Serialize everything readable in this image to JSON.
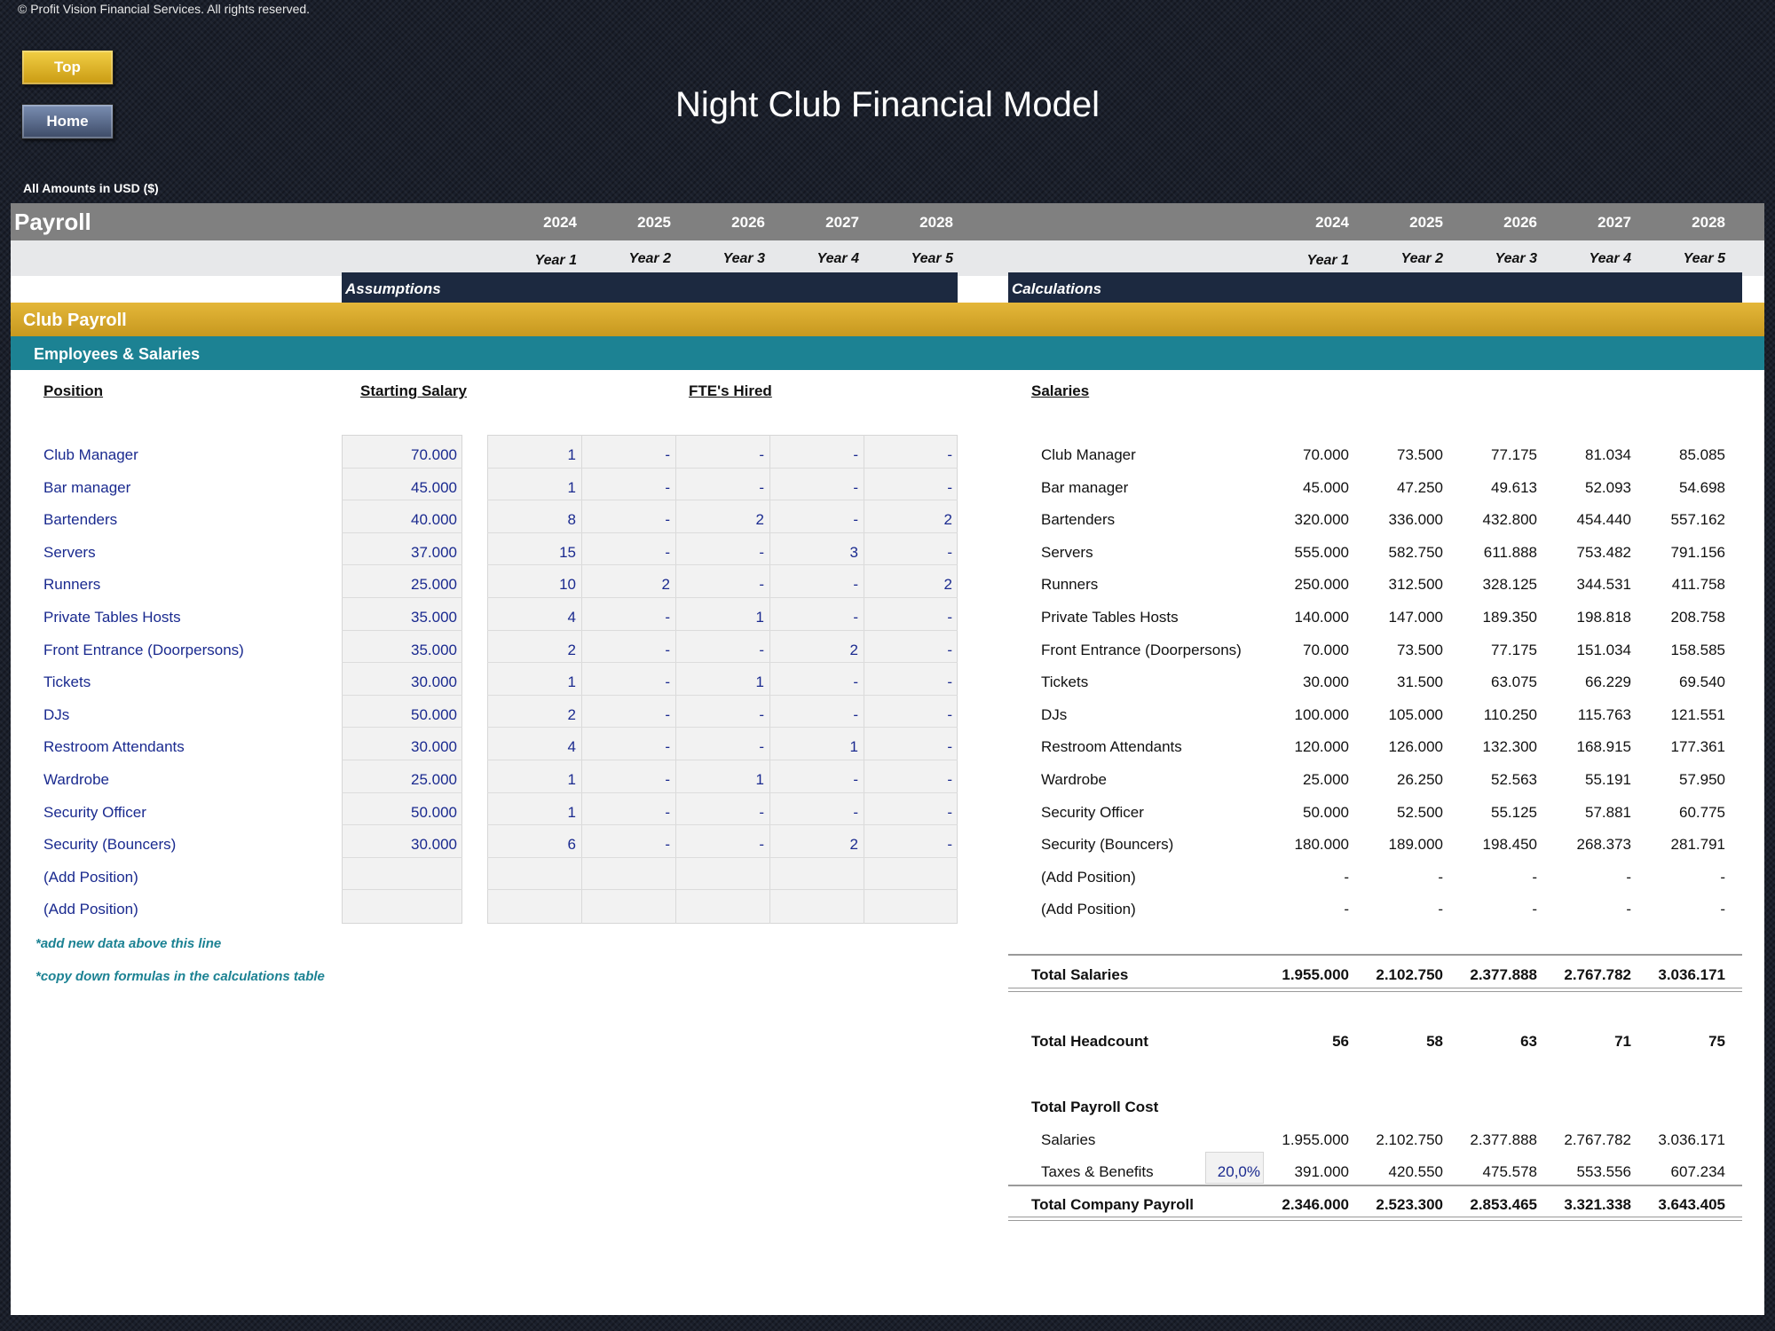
{
  "copyright": "© Profit Vision Financial Services. All rights reserved.",
  "nav": {
    "top_label": "Top",
    "home_label": "Home"
  },
  "title": "Night Club Financial Model",
  "amounts_label": "All Amounts in  USD ($)",
  "header": {
    "sheet_name": "Payroll",
    "years": [
      "2024",
      "2025",
      "2026",
      "2027",
      "2028"
    ],
    "year_labels": [
      "Year 1",
      "Year 2",
      "Year 3",
      "Year 4",
      "Year 5"
    ],
    "assumptions_label": "Assumptions",
    "calculations_label": "Calculations"
  },
  "section": {
    "title": "Club Payroll",
    "subtitle": "Employees & Salaries"
  },
  "columns": {
    "position": "Position",
    "starting_salary": "Starting Salary",
    "ftes_hired": "FTE's Hired",
    "salaries": "Salaries"
  },
  "positions": [
    {
      "name": "Club Manager",
      "salary": "70.000",
      "fte": [
        "1",
        "-",
        "-",
        "-",
        "-"
      ],
      "calc": [
        "70.000",
        "73.500",
        "77.175",
        "81.034",
        "85.085"
      ]
    },
    {
      "name": "Bar manager",
      "salary": "45.000",
      "fte": [
        "1",
        "-",
        "-",
        "-",
        "-"
      ],
      "calc": [
        "45.000",
        "47.250",
        "49.613",
        "52.093",
        "54.698"
      ]
    },
    {
      "name": "Bartenders",
      "salary": "40.000",
      "fte": [
        "8",
        "-",
        "2",
        "-",
        "2"
      ],
      "calc": [
        "320.000",
        "336.000",
        "432.800",
        "454.440",
        "557.162"
      ]
    },
    {
      "name": "Servers",
      "salary": "37.000",
      "fte": [
        "15",
        "-",
        "-",
        "3",
        "-"
      ],
      "calc": [
        "555.000",
        "582.750",
        "611.888",
        "753.482",
        "791.156"
      ]
    },
    {
      "name": "Runners",
      "salary": "25.000",
      "fte": [
        "10",
        "2",
        "-",
        "-",
        "2"
      ],
      "calc": [
        "250.000",
        "312.500",
        "328.125",
        "344.531",
        "411.758"
      ]
    },
    {
      "name": "Private Tables Hosts",
      "salary": "35.000",
      "fte": [
        "4",
        "-",
        "1",
        "-",
        "-"
      ],
      "calc": [
        "140.000",
        "147.000",
        "189.350",
        "198.818",
        "208.758"
      ]
    },
    {
      "name": "Front Entrance (Doorpersons)",
      "salary": "35.000",
      "fte": [
        "2",
        "-",
        "-",
        "2",
        "-"
      ],
      "calc": [
        "70.000",
        "73.500",
        "77.175",
        "151.034",
        "158.585"
      ]
    },
    {
      "name": "Tickets",
      "salary": "30.000",
      "fte": [
        "1",
        "-",
        "1",
        "-",
        "-"
      ],
      "calc": [
        "30.000",
        "31.500",
        "63.075",
        "66.229",
        "69.540"
      ]
    },
    {
      "name": "DJs",
      "salary": "50.000",
      "fte": [
        "2",
        "-",
        "-",
        "-",
        "-"
      ],
      "calc": [
        "100.000",
        "105.000",
        "110.250",
        "115.763",
        "121.551"
      ]
    },
    {
      "name": "Restroom Attendants",
      "salary": "30.000",
      "fte": [
        "4",
        "-",
        "-",
        "1",
        "-"
      ],
      "calc": [
        "120.000",
        "126.000",
        "132.300",
        "168.915",
        "177.361"
      ]
    },
    {
      "name": "Wardrobe",
      "salary": "25.000",
      "fte": [
        "1",
        "-",
        "1",
        "-",
        "-"
      ],
      "calc": [
        "25.000",
        "26.250",
        "52.563",
        "55.191",
        "57.950"
      ]
    },
    {
      "name": "Security Officer",
      "salary": "50.000",
      "fte": [
        "1",
        "-",
        "-",
        "-",
        "-"
      ],
      "calc": [
        "50.000",
        "52.500",
        "55.125",
        "57.881",
        "60.775"
      ]
    },
    {
      "name": "Security (Bouncers)",
      "salary": "30.000",
      "fte": [
        "6",
        "-",
        "-",
        "2",
        "-"
      ],
      "calc": [
        "180.000",
        "189.000",
        "198.450",
        "268.373",
        "281.791"
      ]
    },
    {
      "name": "(Add Position)",
      "salary": "",
      "fte": [
        "",
        "",
        "",
        "",
        ""
      ],
      "calc": [
        "-",
        "-",
        "-",
        "-",
        "-"
      ]
    },
    {
      "name": "(Add Position)",
      "salary": "",
      "fte": [
        "",
        "",
        "",
        "",
        ""
      ],
      "calc": [
        "-",
        "-",
        "-",
        "-",
        "-"
      ]
    }
  ],
  "notes": [
    "*add new data above this line",
    "*copy down formulas in the calculations table"
  ],
  "totals": {
    "total_salaries_label": "Total Salaries",
    "total_salaries": [
      "1.955.000",
      "2.102.750",
      "2.377.888",
      "2.767.782",
      "3.036.171"
    ],
    "total_headcount_label": "Total Headcount",
    "total_headcount": [
      "56",
      "58",
      "63",
      "71",
      "75"
    ],
    "total_payroll_cost_label": "Total Payroll Cost",
    "salaries_label": "Salaries",
    "salaries": [
      "1.955.000",
      "2.102.750",
      "2.377.888",
      "2.767.782",
      "3.036.171"
    ],
    "taxes_label": "Taxes & Benefits",
    "taxes_rate": "20,0%",
    "taxes": [
      "391.000",
      "420.550",
      "475.578",
      "553.556",
      "607.234"
    ],
    "total_company_payroll_label": "Total Company Payroll",
    "total_company_payroll": [
      "2.346.000",
      "2.523.300",
      "2.853.465",
      "3.321.338",
      "3.643.405"
    ]
  }
}
